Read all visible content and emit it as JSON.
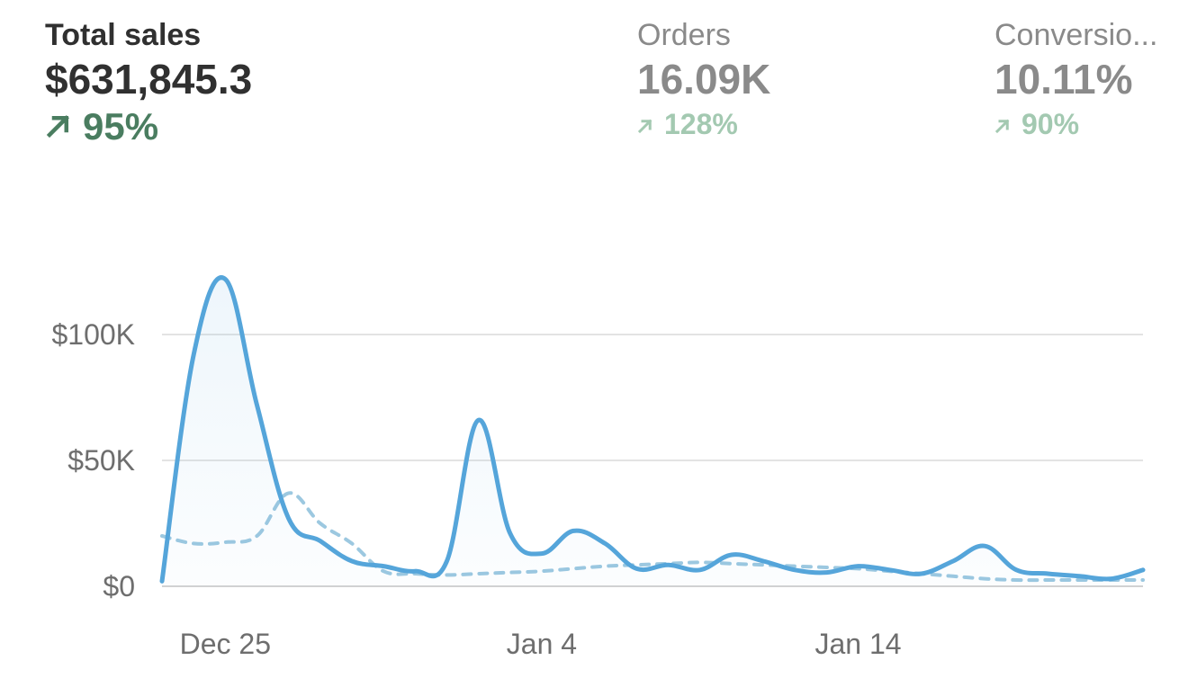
{
  "metrics": [
    {
      "label": "Total sales",
      "value": "$631,845.3",
      "change": "95%",
      "direction": "up",
      "icon": "arrow-up-right-icon"
    },
    {
      "label": "Orders",
      "value": "16.09K",
      "change": "128%",
      "direction": "up",
      "icon": "arrow-up-right-icon"
    },
    {
      "label": "Conversio...",
      "value": "10.11%",
      "change": "90%",
      "direction": "up",
      "icon": "arrow-up-right-icon"
    }
  ],
  "colors": {
    "primary_line": "#55a5da",
    "comparison_line": "#9cc8e0",
    "grid": "#e3e3e3",
    "positive": "#4a7d60",
    "positive_muted": "#a3c9b1"
  },
  "chart_data": {
    "type": "line",
    "xlabel": "",
    "ylabel": "",
    "x_ticks": [
      {
        "label": "Dec 25",
        "x": 0
      },
      {
        "label": "Jan 4",
        "x": 10
      },
      {
        "label": "Jan 14",
        "x": 20
      }
    ],
    "y_ticks": [
      {
        "label": "$0",
        "value": 0
      },
      {
        "label": "$50K",
        "value": 50000
      },
      {
        "label": "$100K",
        "value": 100000
      }
    ],
    "xlim": [
      -2,
      29
    ],
    "ylim": [
      0,
      100000
    ],
    "grid": true,
    "legend": "none",
    "series": [
      {
        "style": "solid",
        "x": [
          -2,
          -1,
          0,
          1,
          2,
          3,
          4,
          5,
          6,
          7,
          8,
          9,
          10,
          11,
          12,
          13,
          14,
          15,
          16,
          17,
          18,
          19,
          20,
          21,
          22,
          23,
          24,
          25,
          26,
          27,
          28,
          29
        ],
        "values": [
          2000,
          92000,
          122000,
          72000,
          27000,
          18000,
          10000,
          8000,
          6000,
          10000,
          66000,
          21000,
          13000,
          22000,
          17000,
          7000,
          8500,
          6500,
          12500,
          10000,
          6500,
          5500,
          8000,
          6500,
          5000,
          10000,
          16000,
          6500,
          5000,
          4000,
          3000,
          6500
        ]
      },
      {
        "style": "dashed",
        "x": [
          -2,
          -1,
          0,
          1,
          2,
          3,
          4,
          5,
          6,
          7,
          8,
          9,
          10,
          11,
          12,
          13,
          14,
          15,
          16,
          17,
          18,
          19,
          20,
          21,
          22,
          23,
          24,
          25,
          26,
          27,
          28,
          29
        ],
        "values": [
          20000,
          17000,
          17500,
          20000,
          37000,
          25000,
          17000,
          6000,
          5000,
          4500,
          5000,
          5500,
          6000,
          7000,
          8000,
          8500,
          9000,
          9500,
          9000,
          8500,
          8000,
          7500,
          7000,
          6000,
          5000,
          4000,
          3000,
          2500,
          2500,
          2500,
          2500,
          2500
        ]
      }
    ]
  }
}
